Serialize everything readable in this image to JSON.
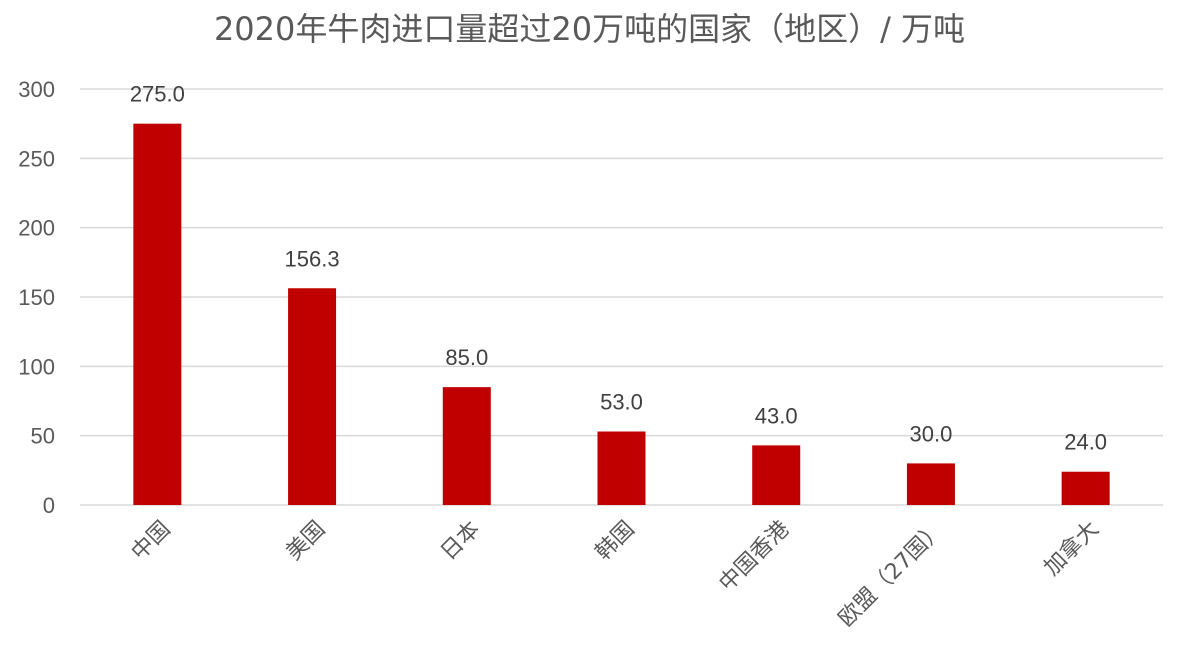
{
  "chart_data": {
    "type": "bar",
    "title": "2020年牛肉进口量超过20万吨的国家（地区）/ 万吨",
    "categories": [
      "中国",
      "美国",
      "日本",
      "韩国",
      "中国香港",
      "欧盟（27国）",
      "加拿大"
    ],
    "values": [
      275.0,
      156.3,
      85.0,
      53.0,
      43.0,
      30.0,
      24.0
    ],
    "data_labels": [
      "275.0",
      "156.3",
      "85.0",
      "53.0",
      "43.0",
      "30.0",
      "24.0"
    ],
    "y_ticks": [
      "0",
      "50",
      "100",
      "150",
      "200",
      "250",
      "300"
    ],
    "ylim": [
      0,
      300
    ],
    "grid": true,
    "legend": "none",
    "bar_color": "#C00000",
    "grid_color": "#D9D9D9"
  }
}
